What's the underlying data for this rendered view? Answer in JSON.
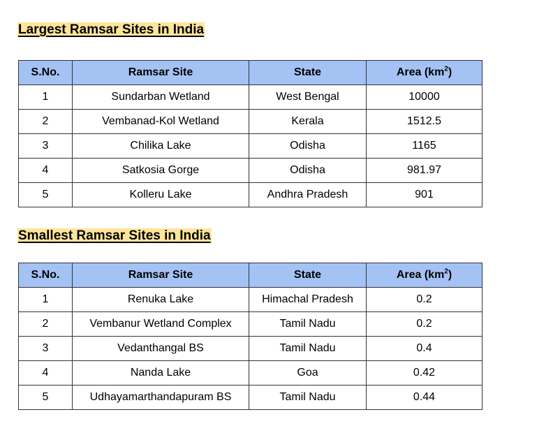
{
  "largest": {
    "heading": "Largest Ramsar Sites in India",
    "columns": {
      "sno": "S.No.",
      "site": "Ramsar Site",
      "state": "State",
      "area": "Area (km",
      "area_sup": "2",
      "area_close": ")"
    },
    "rows": [
      {
        "sno": "1",
        "site": "Sundarban Wetland",
        "state": "West Bengal",
        "area": "10000"
      },
      {
        "sno": "2",
        "site": "Vembanad-Kol Wetland",
        "state": "Kerala",
        "area": "1512.5"
      },
      {
        "sno": "3",
        "site": "Chilika Lake",
        "state": "Odisha",
        "area": "1165"
      },
      {
        "sno": "4",
        "site": "Satkosia Gorge",
        "state": "Odisha",
        "area": "981.97"
      },
      {
        "sno": "5",
        "site": "Kolleru Lake",
        "state": "Andhra Pradesh",
        "area": "901"
      }
    ]
  },
  "smallest": {
    "heading": "Smallest Ramsar Sites in India",
    "columns": {
      "sno": "S.No.",
      "site": "Ramsar Site",
      "state": "State",
      "area": "Area (km",
      "area_sup": "2",
      "area_close": ")"
    },
    "rows": [
      {
        "sno": "1",
        "site": "Renuka Lake",
        "state": "Himachal Pradesh",
        "area": "0.2"
      },
      {
        "sno": "2",
        "site": "Vembanur Wetland Complex",
        "state": "Tamil Nadu",
        "area": "0.2"
      },
      {
        "sno": "3",
        "site": "Vedanthangal BS",
        "state": "Tamil Nadu",
        "area": "0.4"
      },
      {
        "sno": "4",
        "site": "Nanda Lake",
        "state": "Goa",
        "area": "0.42"
      },
      {
        "sno": "5",
        "site": "Udhayamarthandapuram BS",
        "state": "Tamil Nadu",
        "area": "0.44"
      }
    ]
  },
  "colors": {
    "heading_highlight": "#ffe599",
    "header_fill": "#a4c2f4",
    "border": "#333333"
  }
}
